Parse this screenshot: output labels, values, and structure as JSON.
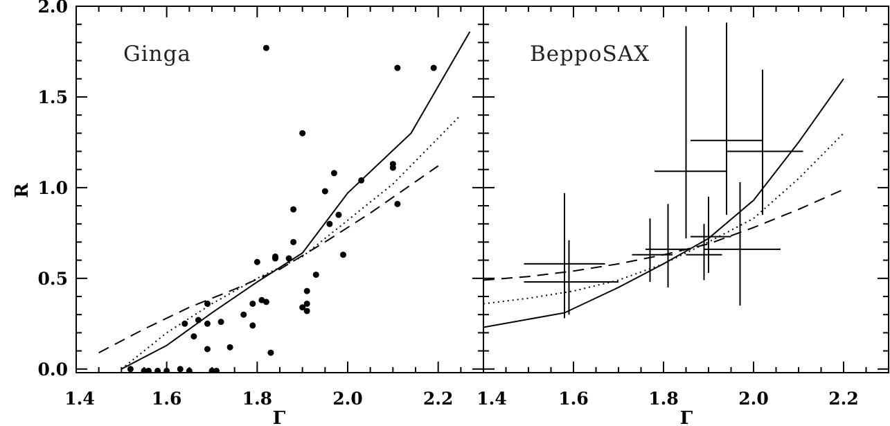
{
  "chart_data": [
    {
      "type": "scatter",
      "title": "Ginga",
      "xlabel": "Γ",
      "ylabel": "R",
      "xlim": [
        1.4,
        2.3
      ],
      "ylim": [
        -0.02,
        2.0
      ],
      "x_ticks": [
        "1.4",
        "1.6",
        "1.8",
        "2.0",
        "2.2"
      ],
      "y_ticks": [
        "0.0",
        "0.5",
        "1.0",
        "1.5",
        "2.0"
      ],
      "points": [
        {
          "x": 1.52,
          "y": 0.0
        },
        {
          "x": 1.55,
          "y": -0.01
        },
        {
          "x": 1.56,
          "y": -0.01
        },
        {
          "x": 1.58,
          "y": -0.01
        },
        {
          "x": 1.6,
          "y": -0.01
        },
        {
          "x": 1.63,
          "y": 0.0
        },
        {
          "x": 1.65,
          "y": -0.01
        },
        {
          "x": 1.7,
          "y": -0.01
        },
        {
          "x": 1.71,
          "y": -0.01
        },
        {
          "x": 1.64,
          "y": 0.25
        },
        {
          "x": 1.66,
          "y": 0.18
        },
        {
          "x": 1.67,
          "y": 0.27
        },
        {
          "x": 1.69,
          "y": 0.25
        },
        {
          "x": 1.69,
          "y": 0.36
        },
        {
          "x": 1.69,
          "y": 0.11
        },
        {
          "x": 1.72,
          "y": 0.26
        },
        {
          "x": 1.74,
          "y": 0.12
        },
        {
          "x": 1.77,
          "y": 0.3
        },
        {
          "x": 1.79,
          "y": 0.36
        },
        {
          "x": 1.79,
          "y": 0.24
        },
        {
          "x": 1.8,
          "y": 0.59
        },
        {
          "x": 1.81,
          "y": 0.38
        },
        {
          "x": 1.82,
          "y": 0.37
        },
        {
          "x": 1.83,
          "y": 0.09
        },
        {
          "x": 1.84,
          "y": 0.62
        },
        {
          "x": 1.84,
          "y": 0.61
        },
        {
          "x": 1.87,
          "y": 0.61
        },
        {
          "x": 1.88,
          "y": 0.7
        },
        {
          "x": 1.88,
          "y": 0.88
        },
        {
          "x": 1.82,
          "y": 1.77
        },
        {
          "x": 1.9,
          "y": 1.3
        },
        {
          "x": 1.9,
          "y": 0.34
        },
        {
          "x": 1.91,
          "y": 0.32
        },
        {
          "x": 1.91,
          "y": 0.36
        },
        {
          "x": 1.91,
          "y": 0.43
        },
        {
          "x": 1.93,
          "y": 0.52
        },
        {
          "x": 1.95,
          "y": 0.98
        },
        {
          "x": 1.96,
          "y": 0.8
        },
        {
          "x": 1.97,
          "y": 1.08
        },
        {
          "x": 1.98,
          "y": 0.85
        },
        {
          "x": 1.99,
          "y": 0.63
        },
        {
          "x": 2.03,
          "y": 1.04
        },
        {
          "x": 2.1,
          "y": 1.13
        },
        {
          "x": 2.1,
          "y": 1.11
        },
        {
          "x": 2.11,
          "y": 0.91
        },
        {
          "x": 2.11,
          "y": 1.66
        },
        {
          "x": 2.19,
          "y": 1.66
        }
      ],
      "series": [
        {
          "style": "solid",
          "x": [
            1.5,
            1.6,
            1.7,
            1.8,
            1.9,
            2.0,
            2.14,
            2.27
          ],
          "y": [
            0.0,
            0.13,
            0.31,
            0.48,
            0.64,
            0.97,
            1.3,
            1.86
          ]
        },
        {
          "style": "dotted",
          "x": [
            1.5,
            1.6,
            1.7,
            1.8,
            1.9,
            2.0,
            2.1,
            2.25
          ],
          "y": [
            0.0,
            0.2,
            0.36,
            0.5,
            0.62,
            0.82,
            1.02,
            1.4
          ]
        },
        {
          "style": "dashed",
          "x": [
            1.45,
            1.55,
            1.65,
            1.75,
            1.85,
            1.95,
            2.05,
            2.2
          ],
          "y": [
            0.09,
            0.22,
            0.34,
            0.44,
            0.55,
            0.7,
            0.86,
            1.12
          ]
        }
      ]
    },
    {
      "type": "scatter",
      "title": "BeppoSAX",
      "xlabel": "Γ",
      "ylabel": "",
      "xlim": [
        1.4,
        2.3
      ],
      "ylim": [
        -0.02,
        2.0
      ],
      "x_ticks": [
        "1.4",
        "1.6",
        "1.8",
        "2.0",
        "2.2"
      ],
      "points_with_errors": [
        {
          "x": 1.58,
          "xlo": 1.49,
          "xhi": 1.67,
          "y": 0.58,
          "ylo": 0.28,
          "yhi": 0.97
        },
        {
          "x": 1.59,
          "xlo": 1.49,
          "xhi": 1.7,
          "y": 0.48,
          "ylo": 0.3,
          "yhi": 0.71
        },
        {
          "x": 1.77,
          "xlo": 1.73,
          "xhi": 1.82,
          "y": 0.63,
          "ylo": 0.48,
          "yhi": 0.83
        },
        {
          "x": 1.81,
          "xlo": 1.76,
          "xhi": 1.86,
          "y": 0.66,
          "ylo": 0.45,
          "yhi": 0.91
        },
        {
          "x": 1.89,
          "xlo": 1.85,
          "xhi": 1.93,
          "y": 0.63,
          "ylo": 0.49,
          "yhi": 0.8
        },
        {
          "x": 1.9,
          "xlo": 1.86,
          "xhi": 1.95,
          "y": 0.73,
          "ylo": 0.53,
          "yhi": 0.95
        },
        {
          "x": 1.85,
          "xlo": 1.78,
          "xhi": 1.94,
          "y": 1.09,
          "ylo": 0.72,
          "yhi": 1.89
        },
        {
          "x": 1.94,
          "xlo": 1.86,
          "xhi": 2.02,
          "y": 1.26,
          "ylo": 0.85,
          "yhi": 1.91
        },
        {
          "x": 1.97,
          "xlo": 1.89,
          "xhi": 2.06,
          "y": 0.66,
          "ylo": 0.35,
          "yhi": 1.03
        },
        {
          "x": 2.02,
          "xlo": 1.94,
          "xhi": 2.11,
          "y": 1.2,
          "ylo": 0.85,
          "yhi": 1.65
        }
      ],
      "series": [
        {
          "style": "solid",
          "x": [
            1.4,
            1.58,
            1.7,
            1.8,
            1.9,
            2.0,
            2.1,
            2.2
          ],
          "y": [
            0.23,
            0.31,
            0.45,
            0.58,
            0.72,
            0.93,
            1.25,
            1.6
          ]
        },
        {
          "style": "dotted",
          "x": [
            1.4,
            1.5,
            1.6,
            1.7,
            1.8,
            1.9,
            2.0,
            2.1,
            2.2
          ],
          "y": [
            0.36,
            0.39,
            0.43,
            0.49,
            0.58,
            0.7,
            0.83,
            1.05,
            1.3
          ]
        },
        {
          "style": "dashed",
          "x": [
            1.4,
            1.5,
            1.6,
            1.7,
            1.8,
            1.9,
            2.0,
            2.1,
            2.2
          ],
          "y": [
            0.49,
            0.51,
            0.54,
            0.58,
            0.63,
            0.69,
            0.78,
            0.88,
            0.99
          ]
        }
      ]
    }
  ]
}
